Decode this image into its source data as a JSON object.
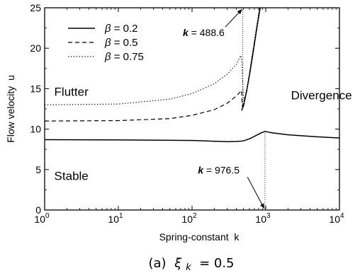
{
  "chart_data": {
    "type": "line",
    "x_scale": "log",
    "xlim": [
      1,
      10000
    ],
    "ylim": [
      0,
      25
    ],
    "xlabel": "Spring-constant  k",
    "ylabel": "Flow velocity  u",
    "x_ticks": [
      {
        "value": 1,
        "base": "10",
        "exp": "0"
      },
      {
        "value": 10,
        "base": "10",
        "exp": "1"
      },
      {
        "value": 100,
        "base": "10",
        "exp": "2"
      },
      {
        "value": 1000,
        "base": "10",
        "exp": "3"
      },
      {
        "value": 10000,
        "base": "10",
        "exp": "4"
      }
    ],
    "y_ticks": [
      {
        "value": 0,
        "label": "0"
      },
      {
        "value": 5,
        "label": "5"
      },
      {
        "value": 10,
        "label": "10"
      },
      {
        "value": 15,
        "label": "15"
      },
      {
        "value": 20,
        "label": "20"
      },
      {
        "value": 25,
        "label": "25"
      }
    ],
    "legend": {
      "placement": "top-left",
      "symbol": "β",
      "entries": [
        "= 0.2",
        "= 0.5",
        "= 0.75"
      ]
    },
    "series": [
      {
        "name": "β = 0.2",
        "style": "solid",
        "points": [
          [
            1,
            8.7
          ],
          [
            10,
            8.66
          ],
          [
            100,
            8.6
          ],
          [
            200,
            8.5
          ],
          [
            300,
            8.45
          ],
          [
            400,
            8.47
          ],
          [
            500,
            8.55
          ],
          [
            600,
            8.8
          ],
          [
            700,
            9.1
          ],
          [
            850,
            9.5
          ],
          [
            976.5,
            9.72
          ],
          [
            1200,
            9.55
          ],
          [
            2000,
            9.3
          ],
          [
            5000,
            9.05
          ],
          [
            10000,
            8.9
          ]
        ]
      },
      {
        "name": "β = 0.5",
        "style": "dashed",
        "points": [
          [
            1,
            11.0
          ],
          [
            10,
            11.05
          ],
          [
            50,
            11.3
          ],
          [
            100,
            11.7
          ],
          [
            200,
            12.4
          ],
          [
            300,
            13.2
          ],
          [
            400,
            14.1
          ],
          [
            470,
            14.8
          ],
          [
            480,
            12.8
          ],
          [
            520,
            13.8
          ],
          [
            570,
            15.5
          ],
          [
            630,
            18.0
          ],
          [
            700,
            20.6
          ],
          [
            780,
            23.2
          ],
          [
            830,
            25.0
          ]
        ]
      },
      {
        "name": "β = 0.75",
        "style": "dotted",
        "points": [
          [
            1,
            13.0
          ],
          [
            10,
            13.1
          ],
          [
            50,
            13.7
          ],
          [
            100,
            14.4
          ],
          [
            200,
            15.6
          ],
          [
            300,
            16.8
          ],
          [
            400,
            18.0
          ],
          [
            460,
            19.1
          ],
          [
            478,
            18.0
          ],
          [
            490,
            15.0
          ],
          [
            510,
            13.4
          ],
          [
            540,
            14.3
          ],
          [
            590,
            16.2
          ],
          [
            650,
            19.0
          ],
          [
            720,
            21.6
          ],
          [
            800,
            24.3
          ],
          [
            820,
            25.0
          ]
        ]
      },
      {
        "name": "divergence boundary",
        "style": "solid",
        "points": [
          [
            470,
            12.3
          ],
          [
            500,
            12.9
          ],
          [
            550,
            14.7
          ],
          [
            610,
            17.0
          ],
          [
            680,
            19.7
          ],
          [
            760,
            22.6
          ],
          [
            840,
            25.0
          ]
        ]
      }
    ],
    "reference_lines": [
      {
        "k": 488.6,
        "u_min": 12.5,
        "u_max": 25
      },
      {
        "k": 976.5,
        "u_min": 0,
        "u_max": 9.72
      }
    ],
    "regions": [
      {
        "label": "Flutter",
        "k": 1.35,
        "u": 14.1
      },
      {
        "label": "Divergence",
        "k": 2200,
        "u": 13.7
      },
      {
        "label": "Stable",
        "k": 1.35,
        "u": 3.7
      }
    ],
    "annotations": [
      {
        "prefix": "k",
        "text": " = 488.6",
        "k": 75,
        "u": 21.5,
        "arrow_to_k": 488.6,
        "arrow_to_u": 25
      },
      {
        "prefix": "k",
        "text": " = 976.5",
        "k": 120,
        "u": 4.5,
        "arrow_to_k": 976.5,
        "arrow_to_u": 0
      }
    ]
  },
  "caption": {
    "prefix": "(a)",
    "symbol": "ξ",
    "subscript": "k",
    "value": " = 0.5"
  }
}
